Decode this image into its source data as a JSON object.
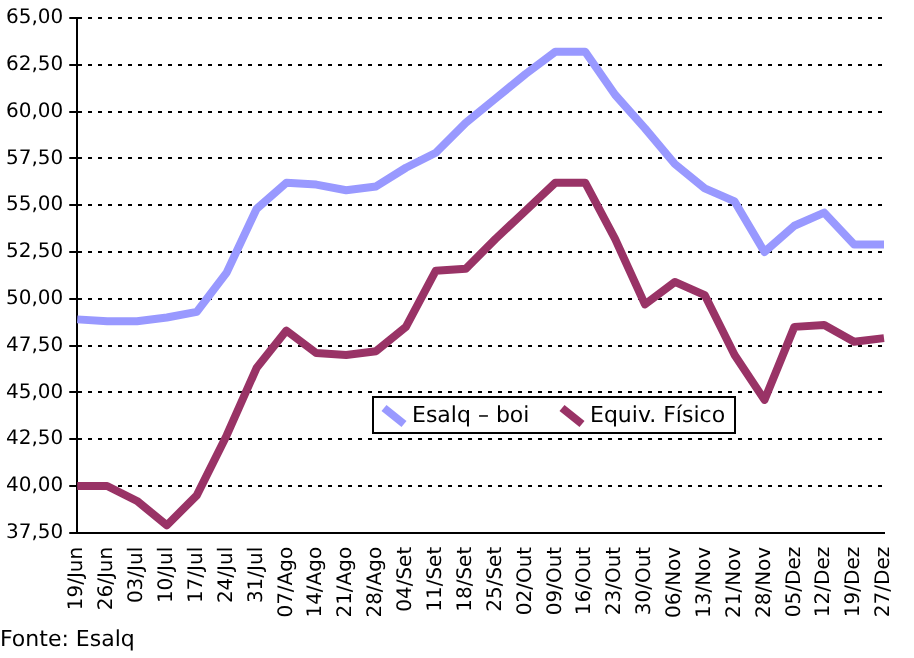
{
  "chart_data": {
    "type": "line",
    "categories": [
      "19/Jun",
      "26/Jun",
      "03/Jul",
      "10/Jul",
      "17/Jul",
      "24/Jul",
      "31/Jul",
      "07/Ago",
      "14/Ago",
      "21/Ago",
      "28/Ago",
      "04/Set",
      "11/Set",
      "18/Set",
      "25/Set",
      "02/Out",
      "09/Out",
      "16/Out",
      "23/Out",
      "30/Out",
      "06/Nov",
      "13/Nov",
      "21/Nov",
      "28/Nov",
      "05/Dez",
      "12/Dez",
      "19/Dez",
      "27/Dez"
    ],
    "series": [
      {
        "name": "Esalq – boi",
        "color": "#9999ff",
        "values": [
          48.9,
          48.8,
          48.8,
          49.0,
          49.3,
          51.4,
          54.8,
          56.2,
          56.1,
          55.8,
          56.0,
          57.0,
          57.8,
          59.4,
          60.7,
          62.0,
          63.2,
          63.2,
          60.9,
          59.1,
          57.2,
          55.9,
          55.2,
          52.5,
          53.9,
          54.6,
          52.9,
          52.9
        ]
      },
      {
        "name": "Equiv. Físico",
        "color": "#993366",
        "values": [
          40.0,
          40.0,
          39.2,
          37.9,
          39.5,
          42.7,
          46.3,
          48.3,
          47.1,
          47.0,
          47.2,
          48.5,
          51.5,
          51.6,
          53.2,
          54.7,
          56.2,
          56.2,
          53.2,
          49.7,
          50.9,
          50.2,
          47.0,
          44.6,
          48.5,
          48.6,
          47.7,
          47.9
        ]
      }
    ],
    "ylim": [
      37.5,
      65
    ],
    "yticks": [
      {
        "value": 37.5,
        "label": "37,50"
      },
      {
        "value": 40,
        "label": "40,00"
      },
      {
        "value": 42.5,
        "label": "42,50"
      },
      {
        "value": 45,
        "label": "45,00"
      },
      {
        "value": 47.5,
        "label": "47,50"
      },
      {
        "value": 50,
        "label": "50,00"
      },
      {
        "value": 52.5,
        "label": "52,50"
      },
      {
        "value": 55,
        "label": "55,00"
      },
      {
        "value": 57.5,
        "label": "57,50"
      },
      {
        "value": 60,
        "label": "60,00"
      },
      {
        "value": 62.5,
        "label": "62,50"
      },
      {
        "value": 65,
        "label": "65,00"
      }
    ],
    "grid": "y",
    "legend": "bottom",
    "marker": "none",
    "line_style": "solid",
    "annotations": [
      "Fonte: Esalq"
    ]
  }
}
